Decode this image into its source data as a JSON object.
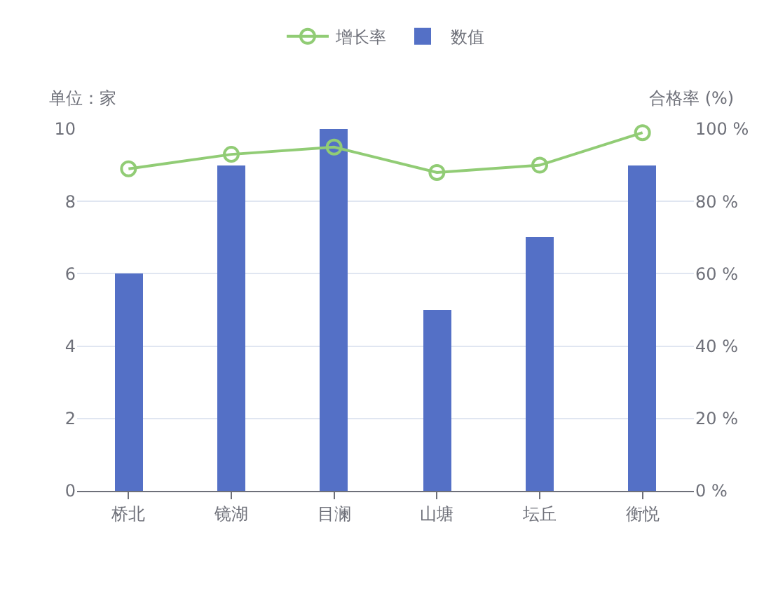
{
  "chart_data": {
    "type": "bar",
    "categories": [
      "桥北",
      "镜湖",
      "目澜",
      "山塘",
      "坛丘",
      "衡悦"
    ],
    "ylabel": "单位：家",
    "y2label": "合格率 (%)",
    "series": [
      {
        "name": "增长率",
        "type": "line",
        "axis": "y2",
        "color": "#91cc75",
        "marker": "circle",
        "values": [
          89,
          93,
          95,
          88,
          90,
          99
        ]
      },
      {
        "name": "数值",
        "color": "#5470c6",
        "values": [
          6,
          9,
          10,
          5,
          7,
          9
        ]
      }
    ],
    "ylim": [
      0,
      10
    ],
    "yticks": [
      0,
      2,
      4,
      6,
      8,
      10
    ],
    "y2lim": [
      0,
      100
    ],
    "y2ticks": [
      {
        "value": 0,
        "label": "0 %"
      },
      {
        "value": 20,
        "label": "20 %"
      },
      {
        "value": 40,
        "label": "40 %"
      },
      {
        "value": 60,
        "label": "60 %"
      },
      {
        "value": 80,
        "label": "80 %"
      },
      {
        "value": 100,
        "label": "100 %"
      }
    ],
    "grid": "y",
    "legend": "top"
  }
}
